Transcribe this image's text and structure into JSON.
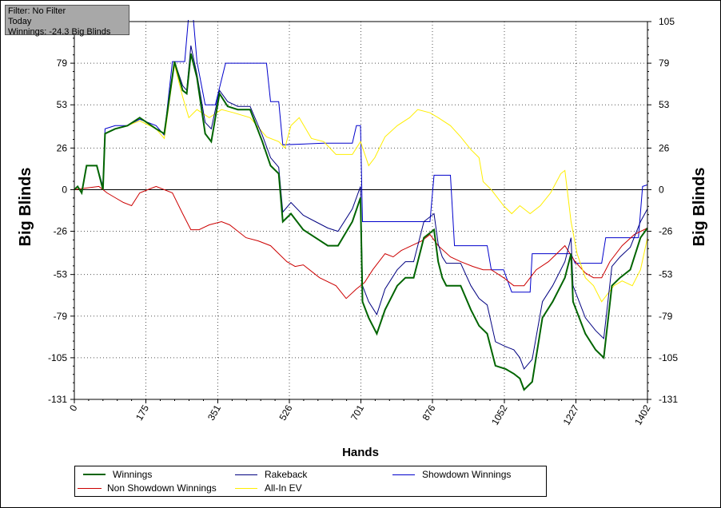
{
  "info": {
    "filter": "Filter: No Filter",
    "period": "Today",
    "winnings": "Winnings: -24.3 Big Blinds"
  },
  "chart_data": {
    "type": "line",
    "xlabel": "Hands",
    "ylabel_left": "Big Blinds",
    "ylabel_right": "Big Blinds",
    "xlim": [
      0,
      1402
    ],
    "ylim": [
      -131,
      105
    ],
    "x_ticks": [
      0,
      175,
      351,
      526,
      701,
      876,
      1052,
      1227,
      1402
    ],
    "y_ticks": [
      105,
      79,
      53,
      26,
      0,
      -26,
      -53,
      -79,
      -105,
      -131
    ],
    "grid": true,
    "legend_position": "bottom",
    "series": [
      {
        "name": "Winnings",
        "color": "#006400",
        "width": 2,
        "points": [
          [
            0,
            0
          ],
          [
            8,
            2
          ],
          [
            18,
            -2
          ],
          [
            30,
            15
          ],
          [
            55,
            15
          ],
          [
            70,
            0
          ],
          [
            75,
            35
          ],
          [
            100,
            38
          ],
          [
            130,
            40
          ],
          [
            160,
            45
          ],
          [
            200,
            38
          ],
          [
            220,
            35
          ],
          [
            245,
            80
          ],
          [
            265,
            62
          ],
          [
            275,
            60
          ],
          [
            285,
            85
          ],
          [
            300,
            70
          ],
          [
            320,
            35
          ],
          [
            335,
            30
          ],
          [
            355,
            60
          ],
          [
            375,
            52
          ],
          [
            400,
            50
          ],
          [
            430,
            50
          ],
          [
            460,
            30
          ],
          [
            480,
            15
          ],
          [
            500,
            10
          ],
          [
            510,
            -20
          ],
          [
            530,
            -15
          ],
          [
            560,
            -25
          ],
          [
            590,
            -30
          ],
          [
            620,
            -35
          ],
          [
            645,
            -35
          ],
          [
            680,
            -20
          ],
          [
            700,
            -5
          ],
          [
            705,
            -70
          ],
          [
            720,
            -80
          ],
          [
            740,
            -90
          ],
          [
            760,
            -75
          ],
          [
            790,
            -60
          ],
          [
            810,
            -55
          ],
          [
            830,
            -55
          ],
          [
            855,
            -30
          ],
          [
            880,
            -25
          ],
          [
            890,
            -45
          ],
          [
            900,
            -55
          ],
          [
            910,
            -60
          ],
          [
            945,
            -60
          ],
          [
            970,
            -75
          ],
          [
            990,
            -85
          ],
          [
            1010,
            -90
          ],
          [
            1030,
            -110
          ],
          [
            1055,
            -112
          ],
          [
            1075,
            -115
          ],
          [
            1090,
            -118
          ],
          [
            1100,
            -125
          ],
          [
            1120,
            -120
          ],
          [
            1145,
            -80
          ],
          [
            1170,
            -70
          ],
          [
            1200,
            -55
          ],
          [
            1215,
            -40
          ],
          [
            1220,
            -70
          ],
          [
            1250,
            -90
          ],
          [
            1275,
            -100
          ],
          [
            1295,
            -105
          ],
          [
            1315,
            -60
          ],
          [
            1335,
            -55
          ],
          [
            1360,
            -50
          ],
          [
            1385,
            -30
          ],
          [
            1402,
            -24
          ]
        ]
      },
      {
        "name": "Rakeback",
        "color": "#000080",
        "width": 1,
        "points": [
          [
            0,
            0
          ],
          [
            8,
            2
          ],
          [
            18,
            -2
          ],
          [
            30,
            15
          ],
          [
            55,
            15
          ],
          [
            70,
            0
          ],
          [
            75,
            35
          ],
          [
            100,
            38
          ],
          [
            130,
            40
          ],
          [
            160,
            45
          ],
          [
            200,
            38
          ],
          [
            220,
            35
          ],
          [
            245,
            80
          ],
          [
            265,
            65
          ],
          [
            275,
            62
          ],
          [
            285,
            90
          ],
          [
            300,
            72
          ],
          [
            320,
            42
          ],
          [
            335,
            38
          ],
          [
            355,
            62
          ],
          [
            375,
            55
          ],
          [
            400,
            52
          ],
          [
            430,
            52
          ],
          [
            460,
            34
          ],
          [
            480,
            20
          ],
          [
            500,
            14
          ],
          [
            510,
            -14
          ],
          [
            530,
            -8
          ],
          [
            560,
            -16
          ],
          [
            590,
            -20
          ],
          [
            620,
            -24
          ],
          [
            645,
            -26
          ],
          [
            680,
            -12
          ],
          [
            700,
            2
          ],
          [
            705,
            -60
          ],
          [
            720,
            -70
          ],
          [
            740,
            -78
          ],
          [
            760,
            -62
          ],
          [
            790,
            -50
          ],
          [
            810,
            -45
          ],
          [
            830,
            -45
          ],
          [
            855,
            -20
          ],
          [
            880,
            -15
          ],
          [
            890,
            -34
          ],
          [
            900,
            -42
          ],
          [
            910,
            -46
          ],
          [
            945,
            -46
          ],
          [
            970,
            -60
          ],
          [
            990,
            -68
          ],
          [
            1010,
            -72
          ],
          [
            1030,
            -95
          ],
          [
            1055,
            -98
          ],
          [
            1075,
            -100
          ],
          [
            1090,
            -105
          ],
          [
            1100,
            -112
          ],
          [
            1120,
            -106
          ],
          [
            1145,
            -70
          ],
          [
            1170,
            -60
          ],
          [
            1200,
            -45
          ],
          [
            1215,
            -30
          ],
          [
            1220,
            -60
          ],
          [
            1250,
            -80
          ],
          [
            1275,
            -88
          ],
          [
            1295,
            -93
          ],
          [
            1315,
            -48
          ],
          [
            1335,
            -42
          ],
          [
            1360,
            -36
          ],
          [
            1385,
            -20
          ],
          [
            1402,
            -12
          ]
        ]
      },
      {
        "name": "Showdown Winnings",
        "color": "#0000cc",
        "width": 1,
        "points": [
          [
            0,
            0
          ],
          [
            8,
            2
          ],
          [
            18,
            -2
          ],
          [
            30,
            15
          ],
          [
            55,
            15
          ],
          [
            70,
            2
          ],
          [
            75,
            38
          ],
          [
            100,
            40
          ],
          [
            130,
            40
          ],
          [
            160,
            44
          ],
          [
            200,
            40
          ],
          [
            220,
            34
          ],
          [
            240,
            80
          ],
          [
            270,
            80
          ],
          [
            285,
            125
          ],
          [
            300,
            80
          ],
          [
            320,
            53
          ],
          [
            345,
            53
          ],
          [
            370,
            79
          ],
          [
            470,
            79
          ],
          [
            480,
            55
          ],
          [
            500,
            55
          ],
          [
            510,
            28
          ],
          [
            610,
            29
          ],
          [
            680,
            29
          ],
          [
            690,
            40
          ],
          [
            700,
            40
          ],
          [
            705,
            -20
          ],
          [
            870,
            -20
          ],
          [
            880,
            9
          ],
          [
            920,
            9
          ],
          [
            930,
            -35
          ],
          [
            1010,
            -35
          ],
          [
            1020,
            -50
          ],
          [
            1050,
            -50
          ],
          [
            1070,
            -64
          ],
          [
            1115,
            -64
          ],
          [
            1120,
            -40
          ],
          [
            1215,
            -40
          ],
          [
            1225,
            -46
          ],
          [
            1290,
            -46
          ],
          [
            1300,
            -30
          ],
          [
            1380,
            -30
          ],
          [
            1390,
            2
          ],
          [
            1402,
            3
          ]
        ]
      },
      {
        "name": "Non Showdown Winnings",
        "color": "#cc0000",
        "width": 1,
        "points": [
          [
            0,
            0
          ],
          [
            30,
            1
          ],
          [
            60,
            2
          ],
          [
            80,
            -2
          ],
          [
            100,
            -5
          ],
          [
            120,
            -8
          ],
          [
            140,
            -10
          ],
          [
            160,
            -2
          ],
          [
            180,
            0
          ],
          [
            200,
            2
          ],
          [
            240,
            -2
          ],
          [
            265,
            -15
          ],
          [
            285,
            -25
          ],
          [
            305,
            -25
          ],
          [
            330,
            -22
          ],
          [
            360,
            -20
          ],
          [
            380,
            -22
          ],
          [
            420,
            -30
          ],
          [
            450,
            -32
          ],
          [
            480,
            -35
          ],
          [
            500,
            -40
          ],
          [
            520,
            -45
          ],
          [
            540,
            -48
          ],
          [
            560,
            -47
          ],
          [
            600,
            -55
          ],
          [
            640,
            -60
          ],
          [
            665,
            -68
          ],
          [
            690,
            -62
          ],
          [
            710,
            -58
          ],
          [
            730,
            -50
          ],
          [
            760,
            -40
          ],
          [
            780,
            -42
          ],
          [
            800,
            -38
          ],
          [
            825,
            -35
          ],
          [
            850,
            -32
          ],
          [
            870,
            -28
          ],
          [
            890,
            -35
          ],
          [
            920,
            -42
          ],
          [
            945,
            -45
          ],
          [
            975,
            -48
          ],
          [
            1000,
            -50
          ],
          [
            1020,
            -50
          ],
          [
            1050,
            -55
          ],
          [
            1075,
            -60
          ],
          [
            1100,
            -60
          ],
          [
            1130,
            -50
          ],
          [
            1160,
            -45
          ],
          [
            1180,
            -40
          ],
          [
            1200,
            -35
          ],
          [
            1225,
            -45
          ],
          [
            1250,
            -52
          ],
          [
            1270,
            -55
          ],
          [
            1290,
            -55
          ],
          [
            1310,
            -45
          ],
          [
            1340,
            -35
          ],
          [
            1370,
            -28
          ],
          [
            1402,
            -24
          ]
        ]
      },
      {
        "name": "All-In EV",
        "color": "#ffee00",
        "width": 1,
        "points": [
          [
            0,
            0
          ],
          [
            8,
            2
          ],
          [
            18,
            -2
          ],
          [
            30,
            15
          ],
          [
            55,
            15
          ],
          [
            70,
            0
          ],
          [
            75,
            35
          ],
          [
            100,
            38
          ],
          [
            130,
            40
          ],
          [
            160,
            43
          ],
          [
            200,
            38
          ],
          [
            220,
            32
          ],
          [
            245,
            78
          ],
          [
            265,
            58
          ],
          [
            280,
            45
          ],
          [
            300,
            50
          ],
          [
            330,
            45
          ],
          [
            360,
            50
          ],
          [
            390,
            48
          ],
          [
            430,
            45
          ],
          [
            470,
            33
          ],
          [
            500,
            30
          ],
          [
            515,
            26
          ],
          [
            530,
            40
          ],
          [
            550,
            45
          ],
          [
            580,
            32
          ],
          [
            610,
            30
          ],
          [
            640,
            22
          ],
          [
            680,
            22
          ],
          [
            700,
            30
          ],
          [
            720,
            15
          ],
          [
            735,
            20
          ],
          [
            760,
            33
          ],
          [
            790,
            40
          ],
          [
            820,
            45
          ],
          [
            840,
            50
          ],
          [
            870,
            48
          ],
          [
            890,
            45
          ],
          [
            920,
            40
          ],
          [
            945,
            33
          ],
          [
            970,
            25
          ],
          [
            990,
            20
          ],
          [
            1000,
            5
          ],
          [
            1020,
            0
          ],
          [
            1050,
            -10
          ],
          [
            1070,
            -15
          ],
          [
            1090,
            -10
          ],
          [
            1115,
            -15
          ],
          [
            1140,
            -10
          ],
          [
            1165,
            -2
          ],
          [
            1190,
            10
          ],
          [
            1200,
            12
          ],
          [
            1215,
            -20
          ],
          [
            1230,
            -40
          ],
          [
            1250,
            -55
          ],
          [
            1270,
            -60
          ],
          [
            1290,
            -70
          ],
          [
            1305,
            -65
          ],
          [
            1320,
            -60
          ],
          [
            1340,
            -57
          ],
          [
            1365,
            -60
          ],
          [
            1385,
            -50
          ],
          [
            1402,
            -30
          ]
        ]
      }
    ]
  }
}
